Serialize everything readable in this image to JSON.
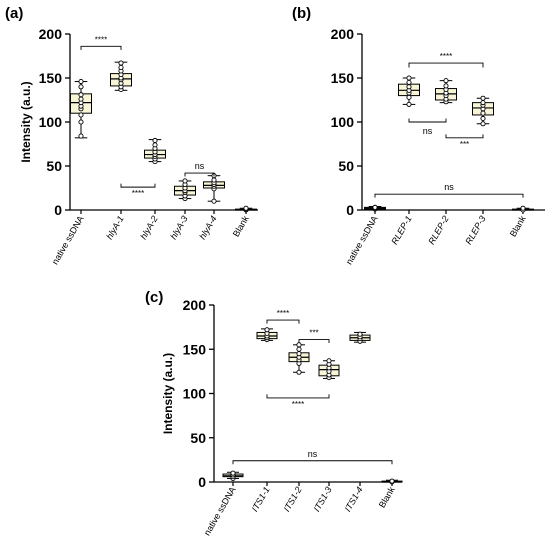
{
  "colors": {
    "box_fill": "#f8f4d6",
    "stroke": "#000000",
    "point_fill": "#ffffff"
  },
  "chart_data": [
    {
      "panel_label": "(a)",
      "type": "box",
      "ylabel": "Intensity (a.u.)",
      "ylim": [
        0,
        200
      ],
      "yticks": [
        0,
        50,
        100,
        150,
        200
      ],
      "categories": [
        {
          "text": "native ssDNA",
          "italic": false
        },
        {
          "text": "hlyA-1",
          "italic": true
        },
        {
          "text": "hlyA-2",
          "italic": true
        },
        {
          "text": "hlyA-3",
          "italic": true
        },
        {
          "text": "hlyA-4",
          "italic": true
        },
        {
          "text": "Blank",
          "italic": false
        }
      ],
      "boxes": [
        {
          "min": 82,
          "q1": 110,
          "median": 122,
          "q3": 132,
          "max": 146,
          "points": [
            84,
            100,
            108,
            115,
            118,
            122,
            126,
            131,
            140,
            146
          ]
        },
        {
          "min": 136,
          "q1": 141,
          "median": 149,
          "q3": 155,
          "max": 168,
          "points": [
            137,
            140,
            144,
            148,
            150,
            154,
            158,
            162,
            167
          ]
        },
        {
          "min": 55,
          "q1": 59,
          "median": 63,
          "q3": 68,
          "max": 80,
          "points": [
            55,
            58,
            61,
            63,
            66,
            70,
            74,
            79
          ]
        },
        {
          "min": 13,
          "q1": 17,
          "median": 22,
          "q3": 27,
          "max": 33,
          "points": [
            13,
            16,
            20,
            22,
            25,
            29,
            33
          ]
        },
        {
          "min": 10,
          "q1": 25,
          "median": 28,
          "q3": 32,
          "max": 39,
          "points": [
            10,
            24,
            27,
            29,
            31,
            34,
            39
          ]
        },
        {
          "min": 0,
          "q1": 0,
          "median": 0.5,
          "q3": 1,
          "max": 2,
          "points": [
            0,
            1,
            2
          ]
        }
      ],
      "annotations": [
        {
          "from": 0,
          "to": 1,
          "style": "top",
          "y": 186,
          "tick": 182,
          "label": "****"
        },
        {
          "from": 1,
          "to": 2,
          "style": "bottom",
          "y": 26,
          "tick": 30,
          "label": "****"
        },
        {
          "from": 3,
          "to": 4,
          "style": "top",
          "y": 42,
          "tick": 38,
          "label": "ns"
        }
      ]
    },
    {
      "panel_label": "(b)",
      "type": "box",
      "ylabel": "",
      "ylim": [
        0,
        200
      ],
      "yticks": [
        0,
        50,
        100,
        150,
        200
      ],
      "categories": [
        {
          "text": "native ssDNA",
          "italic": false
        },
        {
          "text": "RLEP-1",
          "italic": true
        },
        {
          "text": "RLEP-2",
          "italic": true
        },
        {
          "text": "RLEP-3",
          "italic": true
        },
        {
          "text": "Blank",
          "italic": false
        }
      ],
      "boxes": [
        {
          "min": 0,
          "q1": 1,
          "median": 2,
          "q3": 3,
          "max": 4,
          "points": [
            1,
            2,
            3
          ]
        },
        {
          "min": 120,
          "q1": 130,
          "median": 136,
          "q3": 143,
          "max": 150,
          "points": [
            120,
            128,
            133,
            136,
            140,
            145,
            150
          ]
        },
        {
          "min": 122,
          "q1": 125,
          "median": 132,
          "q3": 138,
          "max": 147,
          "points": [
            123,
            126,
            130,
            133,
            137,
            141,
            147
          ]
        },
        {
          "min": 98,
          "q1": 108,
          "median": 116,
          "q3": 122,
          "max": 127,
          "points": [
            98,
            104,
            110,
            115,
            119,
            122,
            127
          ]
        },
        {
          "min": 0,
          "q1": 0,
          "median": 0.5,
          "q3": 1,
          "max": 2,
          "points": [
            0,
            2
          ]
        }
      ],
      "annotations": [
        {
          "from": 1,
          "to": 3,
          "style": "top",
          "y": 167,
          "tick": 162,
          "label": "****"
        },
        {
          "from": 1,
          "to": 2,
          "style": "bottom",
          "y": 100,
          "tick": 104,
          "label": "ns"
        },
        {
          "from": 2,
          "to": 3,
          "style": "bottom",
          "y": 82,
          "tick": 86,
          "label": "***"
        },
        {
          "from": 0,
          "to": 4,
          "style": "top",
          "y": 18,
          "tick": 14,
          "label": "ns"
        }
      ]
    },
    {
      "panel_label": "(c)",
      "type": "box",
      "ylabel": "Intensity (a.u.)",
      "ylim": [
        0,
        200
      ],
      "yticks": [
        0,
        50,
        100,
        150,
        200
      ],
      "categories": [
        {
          "text": "native ssDNA",
          "italic": false
        },
        {
          "text": "ITS1-1",
          "italic": true
        },
        {
          "text": "ITS1-2",
          "italic": true
        },
        {
          "text": "ITS1-3",
          "italic": true
        },
        {
          "text": "ITS1-4",
          "italic": true
        },
        {
          "text": "Blank",
          "italic": false
        }
      ],
      "boxes": [
        {
          "min": 4,
          "q1": 6,
          "median": 7,
          "q3": 9,
          "max": 11,
          "points": [
            4,
            6,
            8,
            10
          ]
        },
        {
          "min": 160,
          "q1": 162,
          "median": 165,
          "q3": 169,
          "max": 173,
          "points": [
            161,
            163,
            165,
            168,
            172
          ]
        },
        {
          "min": 124,
          "q1": 136,
          "median": 141,
          "q3": 146,
          "max": 155,
          "points": [
            124,
            134,
            138,
            141,
            145,
            150,
            155
          ]
        },
        {
          "min": 117,
          "q1": 120,
          "median": 127,
          "q3": 132,
          "max": 137,
          "points": [
            118,
            121,
            125,
            129,
            133,
            137
          ]
        },
        {
          "min": 158,
          "q1": 160,
          "median": 163,
          "q3": 166,
          "max": 169,
          "points": [
            159,
            162,
            164,
            167
          ]
        },
        {
          "min": 0,
          "q1": 0,
          "median": 0.5,
          "q3": 1,
          "max": 2,
          "points": [
            0,
            1
          ]
        }
      ],
      "annotations": [
        {
          "from": 1,
          "to": 2,
          "style": "top",
          "y": 183,
          "tick": 179,
          "label": "****"
        },
        {
          "from": 2,
          "to": 3,
          "style": "top",
          "y": 161,
          "tick": 157,
          "label": "***"
        },
        {
          "from": 1,
          "to": 3,
          "style": "bottom",
          "y": 95,
          "tick": 99,
          "label": "****"
        },
        {
          "from": 0,
          "to": 5,
          "style": "top",
          "y": 24,
          "tick": 20,
          "label": "ns"
        }
      ]
    }
  ]
}
